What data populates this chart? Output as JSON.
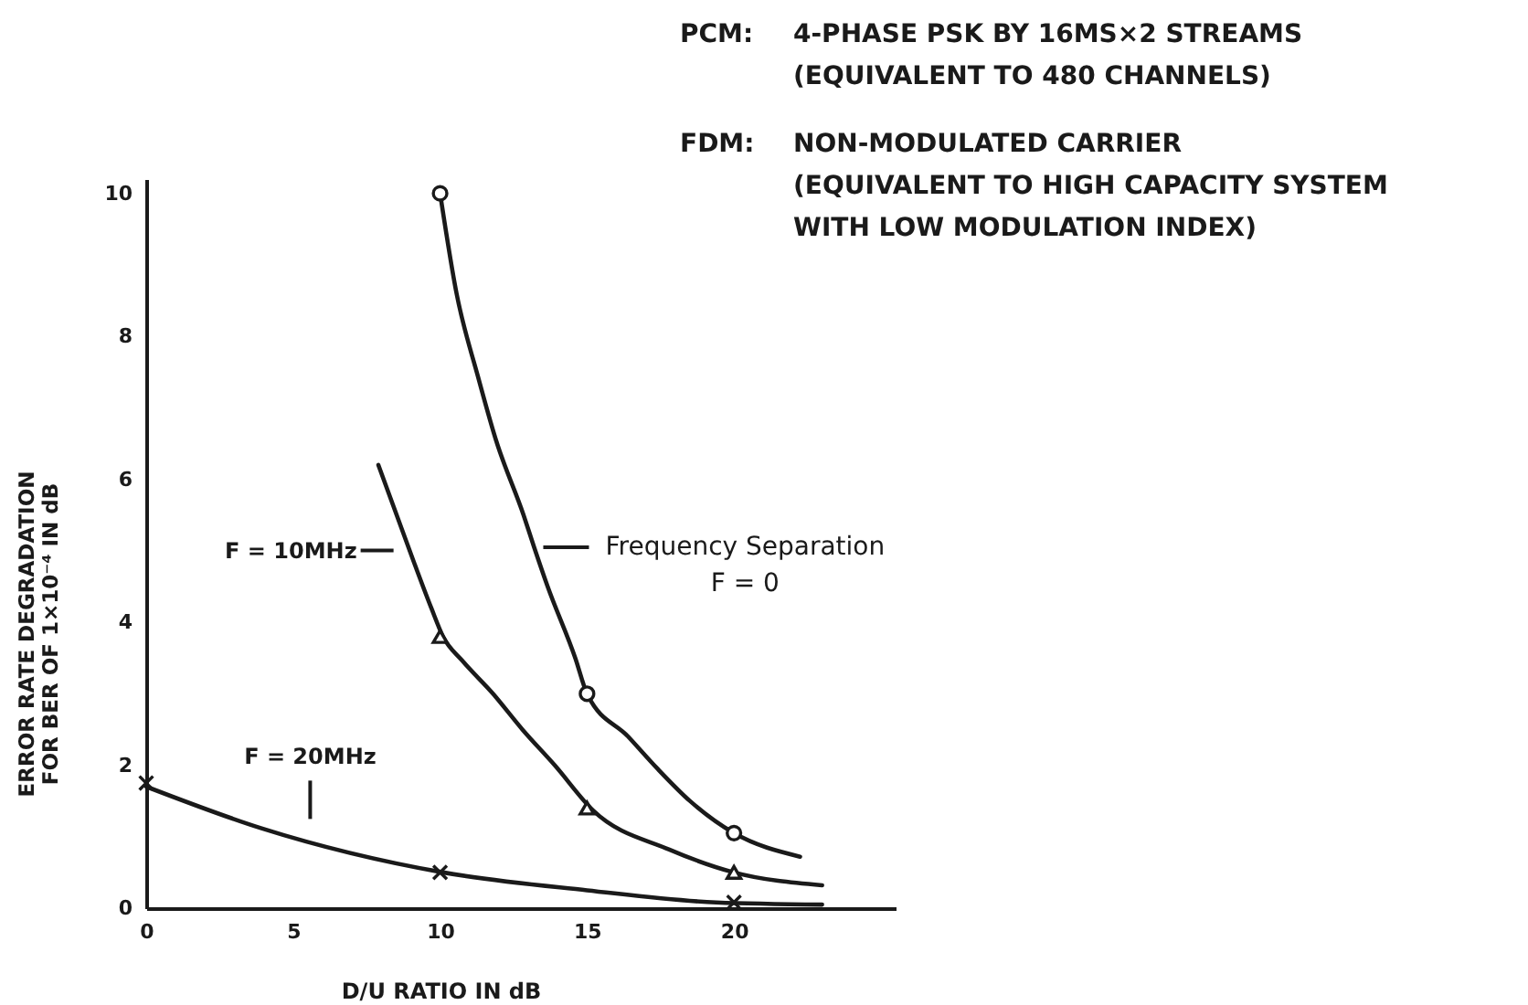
{
  "chart_data": {
    "type": "line",
    "xlabel": "D/U RATIO IN dB",
    "ylabel": "ERROR RATE DEGRADATION FOR BER OF 1×10⁻⁴ IN dB",
    "annotations": [
      "PCM: 4-PHASE PSK BY 16MS×2 STREAMS",
      "(EQUIVALENT TO 480 CHANNELS)",
      "FDM: NON-MODULATED CARRIER",
      "(EQUIVALENT TO HIGH CAPACITY SYSTEM WITH LOW MODULATION INDEX)"
    ],
    "series": [
      {
        "name": "Frequency Separation F = 0",
        "color": "#1a1a1a",
        "x": [
          10,
          10.56,
          11.28,
          11.9,
          12.84,
          13.2,
          13.66,
          14.6,
          15,
          16.4,
          17.4,
          18.5,
          20,
          22.25
        ],
        "values": [
          10,
          8.6,
          7.45,
          6.55,
          5.5,
          5.05,
          4.5,
          3.5,
          3.0,
          2.4,
          1.95,
          1.5,
          1.05,
          0.72
        ]
      },
      {
        "name": "F = 10MHz",
        "color": "#1a1a1a",
        "x": [
          7.9,
          9.1,
          9.7,
          10.1,
          10.76,
          11.8,
          12.8,
          13.9,
          15.2,
          17.8,
          20,
          23
        ],
        "values": [
          6.2,
          4.85,
          4.2,
          3.8,
          3.46,
          3.0,
          2.5,
          2.0,
          1.37,
          0.82,
          0.5,
          0.32
        ]
      },
      {
        "name": "F = 20MHz",
        "color": "#1a1a1a",
        "x": [
          0,
          3.9,
          10.1,
          15,
          19.4,
          23
        ],
        "values": [
          1.7,
          1.12,
          0.5,
          0.25,
          0.08,
          0.05
        ]
      },
      {
        "type": "scatter",
        "marker": "circle",
        "color": "#1a1a1a",
        "x": [
          10,
          15,
          20
        ],
        "values": [
          10,
          3.0,
          1.05
        ]
      },
      {
        "type": "scatter",
        "marker": "triangle",
        "color": "#1a1a1a",
        "x": [
          10,
          15,
          20
        ],
        "values": [
          3.8,
          1.4,
          0.5
        ]
      },
      {
        "type": "scatter",
        "marker": "cross",
        "color": "#1a1a1a",
        "x": [
          0,
          10,
          20
        ],
        "values": [
          1.75,
          0.5,
          0.08
        ]
      }
    ],
    "xlim": [
      0,
      25.5
    ],
    "ylim": [
      0,
      10.2
    ],
    "xticks": [
      0,
      5,
      10,
      15,
      20
    ],
    "yticks": [
      0,
      2,
      4,
      6,
      8,
      10
    ]
  }
}
